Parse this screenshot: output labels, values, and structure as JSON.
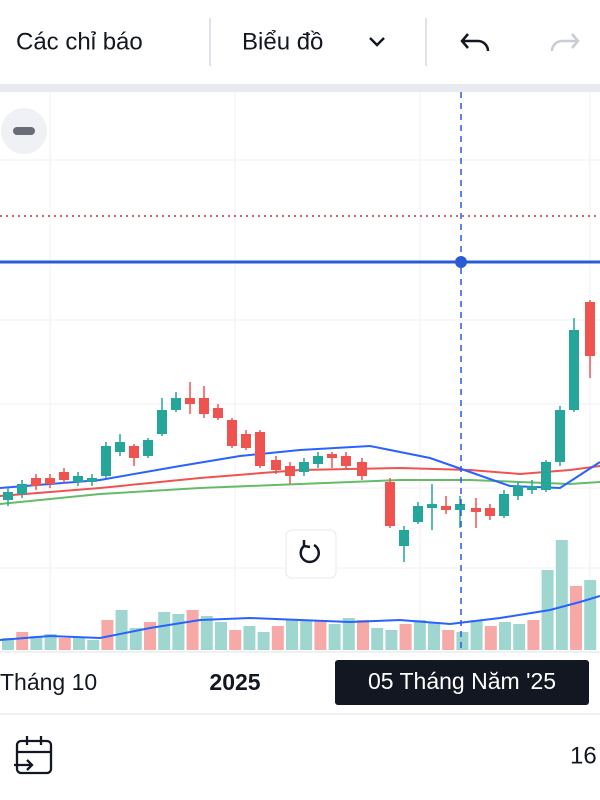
{
  "toolbar": {
    "indicators": "Các chỉ báo",
    "chart_menu": "Biểu đồ"
  },
  "x_axis": {
    "labels": [
      "Tháng 10",
      "2025"
    ],
    "crosshair_label": "05 Tháng Năm '25"
  },
  "footer": {
    "right_text": "16"
  }
}
